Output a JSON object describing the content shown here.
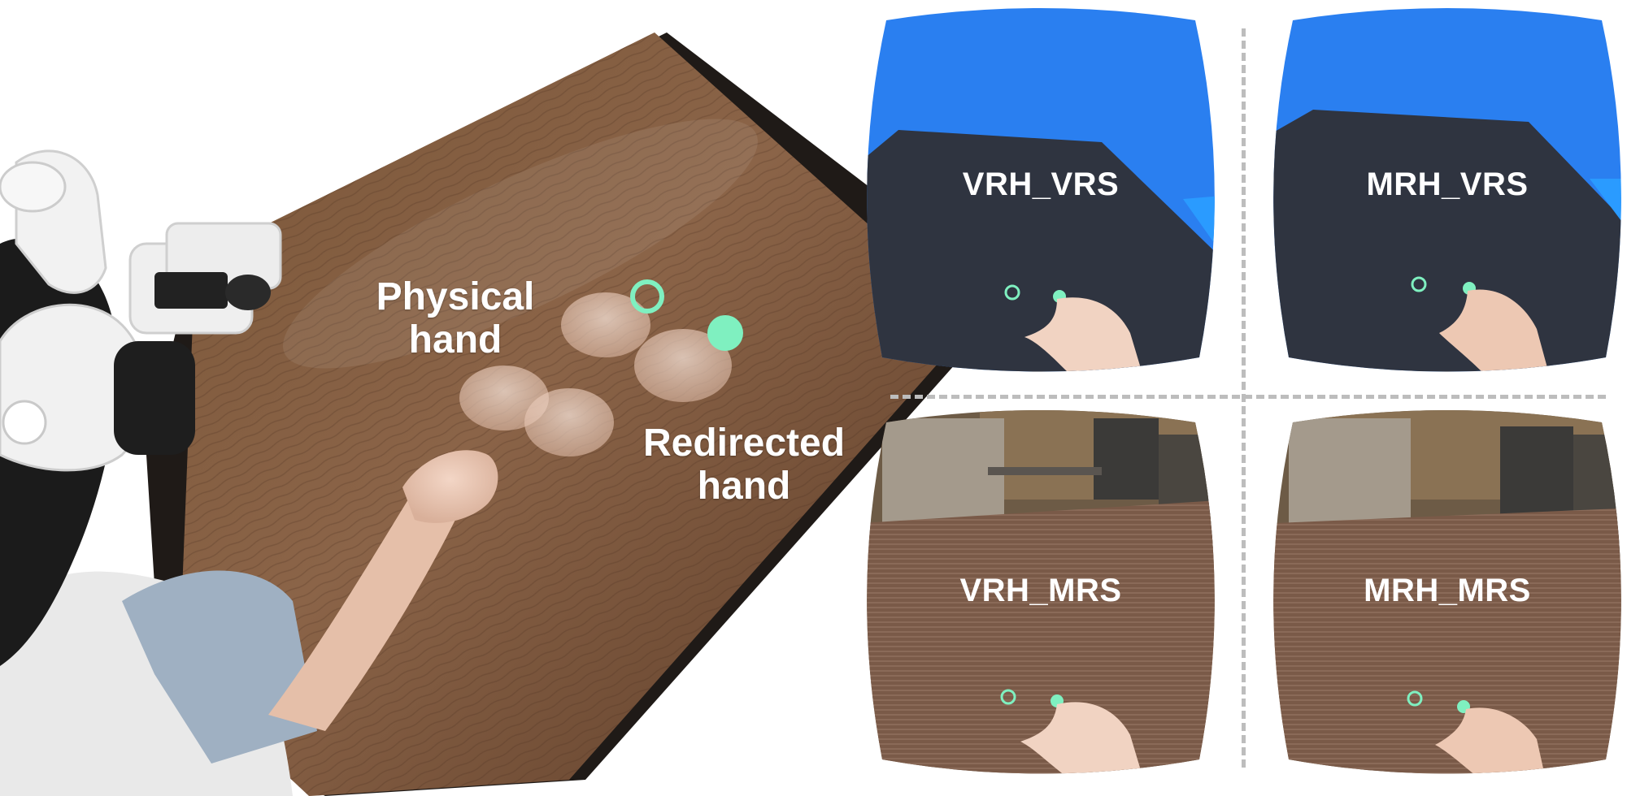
{
  "photo_labels": {
    "physical_hand": [
      "Physical",
      "hand"
    ],
    "redirected_hand": [
      "Redirected",
      "hand"
    ]
  },
  "panels": {
    "vrh_vrs": "VRH_VRS",
    "mrh_vrs": "MRH_VRS",
    "vrh_mrs": "VRH_MRS",
    "mrh_mrs": "MRH_MRS"
  },
  "colors": {
    "sky_blue": "#2a7ff0",
    "dark_floor": "#2f3440",
    "target_green": "#7ff0c0",
    "wood_dark": "#5b3d28",
    "wood_light": "#8b6346",
    "divider_gray": "#bdbdbd"
  }
}
